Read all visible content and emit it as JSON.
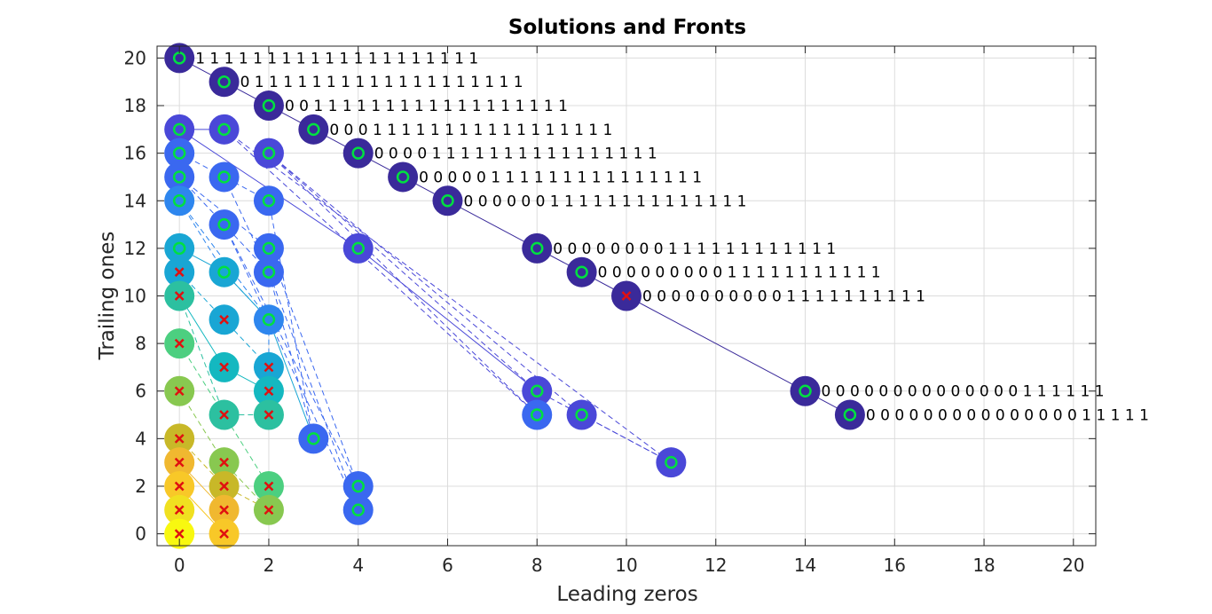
{
  "chart_data": {
    "type": "scatter",
    "title": "Solutions and Fronts",
    "xlabel": "Leading zeros",
    "ylabel": "Trailing ones",
    "xlim": [
      -0.5,
      20.5
    ],
    "ylim": [
      -0.5,
      20.5
    ],
    "xticks": [
      "0",
      "2",
      "4",
      "6",
      "8",
      "10",
      "12",
      "14",
      "16",
      "18",
      "20"
    ],
    "yticks": [
      "0",
      "2",
      "4",
      "6",
      "8",
      "10",
      "12",
      "14",
      "16",
      "18",
      "20"
    ],
    "grid": true,
    "front_colors": [
      "#3a2a9a",
      "#4a48d8",
      "#3a68f0",
      "#2e86ee",
      "#19a6d4",
      "#14b8c0",
      "#2cc0a0",
      "#4ccf80",
      "#88c850",
      "#c8b828",
      "#f0b830",
      "#f8c828",
      "#f0e020",
      "#f8f810"
    ],
    "marker_colors": {
      "selected": "#00e040",
      "rejected": "#e01010"
    },
    "points": [
      {
        "x": 0,
        "y": 20,
        "front": 0,
        "marker": "o",
        "bits": "1 1 1 1 1 1 1 1 1 1 1 1 1 1 1 1 1 1 1 1"
      },
      {
        "x": 1,
        "y": 19,
        "front": 0,
        "marker": "o",
        "bits": "0 1 1 1 1 1 1 1 1 1 1 1 1 1 1 1 1 1 1 1"
      },
      {
        "x": 2,
        "y": 18,
        "front": 0,
        "marker": "o",
        "bits": "0 0 1 1 1 1 1 1 1 1 1 1 1 1 1 1 1 1 1 1"
      },
      {
        "x": 3,
        "y": 17,
        "front": 0,
        "marker": "o",
        "bits": "0 0 0 1 1 1 1 1 1 1 1 1 1 1 1 1 1 1 1 1"
      },
      {
        "x": 4,
        "y": 16,
        "front": 0,
        "marker": "o",
        "bits": "0 0 0 0 1 1 1 1 1 1 1 1 1 1 1 1 1 1 1 1"
      },
      {
        "x": 5,
        "y": 15,
        "front": 0,
        "marker": "o",
        "bits": "0 0 0 0 0 1 1 1 1 1 1 1 1 1 1 1 1 1 1 1"
      },
      {
        "x": 6,
        "y": 14,
        "front": 0,
        "marker": "o",
        "bits": "0 0 0 0 0 0 1 1 1 1 1 1 1 1 1 1 1 1 1 1"
      },
      {
        "x": 8,
        "y": 12,
        "front": 0,
        "marker": "o",
        "bits": "0 0 0 0 0 0 0 0 1 1 1 1 1 1 1 1 1 1 1 1"
      },
      {
        "x": 9,
        "y": 11,
        "front": 0,
        "marker": "o",
        "bits": "0 0 0 0 0 0 0 0 0 1 1 1 1 1 1 1 1 1 1 1"
      },
      {
        "x": 10,
        "y": 10,
        "front": 0,
        "marker": "x",
        "bits": "0 0 0 0 0 0 0 0 0 0 1 1 1 1 1 1 1 1 1 1"
      },
      {
        "x": 14,
        "y": 6,
        "front": 0,
        "marker": "o",
        "bits": "0 0 0 0 0 0 0 0 0 0 0 0 0 0 1 1 1 1 1 1"
      },
      {
        "x": 15,
        "y": 5,
        "front": 0,
        "marker": "o",
        "bits": "0 0 0 0 0 0 0 0 0 0 0 0 0 0 0 1 1 1 1 1"
      },
      {
        "x": 0,
        "y": 17,
        "front": 1,
        "marker": "o"
      },
      {
        "x": 1,
        "y": 17,
        "front": 1,
        "marker": "o"
      },
      {
        "x": 2,
        "y": 16,
        "front": 1,
        "marker": "o"
      },
      {
        "x": 4,
        "y": 12,
        "front": 1,
        "marker": "o"
      },
      {
        "x": 8,
        "y": 6,
        "front": 1,
        "marker": "o"
      },
      {
        "x": 9,
        "y": 5,
        "front": 1,
        "marker": "o"
      },
      {
        "x": 11,
        "y": 3,
        "front": 1,
        "marker": "o"
      },
      {
        "x": 0,
        "y": 16,
        "front": 2,
        "marker": "o"
      },
      {
        "x": 1,
        "y": 15,
        "front": 2,
        "marker": "o"
      },
      {
        "x": 2,
        "y": 14,
        "front": 2,
        "marker": "o"
      },
      {
        "x": 8,
        "y": 5,
        "front": 2,
        "marker": "o"
      },
      {
        "x": 0,
        "y": 15,
        "front": 2,
        "marker": "o"
      },
      {
        "x": 1,
        "y": 13,
        "front": 2,
        "marker": "o"
      },
      {
        "x": 2,
        "y": 12,
        "front": 2,
        "marker": "o"
      },
      {
        "x": 2,
        "y": 11,
        "front": 2,
        "marker": "o"
      },
      {
        "x": 3,
        "y": 4,
        "front": 2,
        "marker": "o"
      },
      {
        "x": 4,
        "y": 2,
        "front": 2,
        "marker": "o"
      },
      {
        "x": 4,
        "y": 1,
        "front": 2,
        "marker": "o"
      },
      {
        "x": 0,
        "y": 14,
        "front": 3,
        "marker": "o"
      },
      {
        "x": 2,
        "y": 9,
        "front": 3,
        "marker": "o"
      },
      {
        "x": 0,
        "y": 12,
        "front": 4,
        "marker": "o"
      },
      {
        "x": 1,
        "y": 11,
        "front": 4,
        "marker": "o"
      },
      {
        "x": 0,
        "y": 11,
        "front": 4,
        "marker": "x"
      },
      {
        "x": 1,
        "y": 9,
        "front": 4,
        "marker": "x"
      },
      {
        "x": 2,
        "y": 7,
        "front": 4,
        "marker": "x"
      },
      {
        "x": 1,
        "y": 7,
        "front": 5,
        "marker": "x"
      },
      {
        "x": 2,
        "y": 6,
        "front": 5,
        "marker": "x"
      },
      {
        "x": 0,
        "y": 10,
        "front": 6,
        "marker": "x"
      },
      {
        "x": 1,
        "y": 5,
        "front": 6,
        "marker": "x"
      },
      {
        "x": 2,
        "y": 5,
        "front": 6,
        "marker": "x"
      },
      {
        "x": 0,
        "y": 8,
        "front": 7,
        "marker": "x"
      },
      {
        "x": 2,
        "y": 2,
        "front": 7,
        "marker": "x"
      },
      {
        "x": 0,
        "y": 6,
        "front": 8,
        "marker": "x"
      },
      {
        "x": 1,
        "y": 3,
        "front": 8,
        "marker": "x"
      },
      {
        "x": 2,
        "y": 1,
        "front": 8,
        "marker": "x"
      },
      {
        "x": 0,
        "y": 4,
        "front": 9,
        "marker": "x"
      },
      {
        "x": 1,
        "y": 2,
        "front": 9,
        "marker": "x"
      },
      {
        "x": 0,
        "y": 3,
        "front": 10,
        "marker": "x"
      },
      {
        "x": 1,
        "y": 1,
        "front": 10,
        "marker": "x"
      },
      {
        "x": 0,
        "y": 2,
        "front": 11,
        "marker": "x"
      },
      {
        "x": 1,
        "y": 0,
        "front": 11,
        "marker": "x"
      },
      {
        "x": 0,
        "y": 1,
        "front": 12,
        "marker": "x"
      },
      {
        "x": 0,
        "y": 0,
        "front": 13,
        "marker": "x"
      }
    ],
    "front_lines": [
      {
        "front": 0,
        "style": "solid",
        "points": [
          [
            0,
            20
          ],
          [
            1,
            19
          ],
          [
            2,
            18
          ],
          [
            3,
            17
          ],
          [
            4,
            16
          ],
          [
            5,
            15
          ],
          [
            6,
            14
          ],
          [
            8,
            12
          ],
          [
            9,
            11
          ],
          [
            10,
            10
          ],
          [
            14,
            6
          ],
          [
            15,
            5
          ]
        ]
      },
      {
        "front": 1,
        "style": "solid",
        "points": [
          [
            0,
            17
          ],
          [
            1,
            17
          ]
        ]
      },
      {
        "front": 1,
        "style": "solid",
        "points": [
          [
            0,
            17
          ],
          [
            4,
            12
          ],
          [
            8,
            6
          ]
        ]
      },
      {
        "front": 1,
        "style": "dashed",
        "points": [
          [
            1,
            17
          ],
          [
            8,
            5
          ]
        ]
      },
      {
        "front": 1,
        "style": "dashed",
        "points": [
          [
            2,
            16
          ],
          [
            9,
            5
          ],
          [
            11,
            3
          ]
        ]
      },
      {
        "front": 1,
        "style": "dashed",
        "points": [
          [
            2,
            16
          ],
          [
            8,
            6
          ],
          [
            11,
            3
          ]
        ]
      },
      {
        "front": 1,
        "style": "dashed",
        "points": [
          [
            2,
            16
          ],
          [
            8,
            5
          ]
        ]
      },
      {
        "front": 1,
        "style": "dashed",
        "points": [
          [
            1,
            17
          ],
          [
            11,
            3
          ]
        ]
      },
      {
        "front": 2,
        "style": "dashed",
        "points": [
          [
            0,
            16
          ],
          [
            2,
            14
          ],
          [
            3,
            4
          ]
        ]
      },
      {
        "front": 2,
        "style": "dashed",
        "points": [
          [
            0,
            15
          ],
          [
            2,
            12
          ],
          [
            4,
            2
          ]
        ]
      },
      {
        "front": 2,
        "style": "dashed",
        "points": [
          [
            0,
            15
          ],
          [
            2,
            11
          ],
          [
            4,
            1
          ]
        ]
      },
      {
        "front": 2,
        "style": "dashed",
        "points": [
          [
            1,
            15
          ],
          [
            2,
            11
          ],
          [
            3,
            4
          ]
        ]
      },
      {
        "front": 2,
        "style": "dashed",
        "points": [
          [
            1,
            13
          ],
          [
            4,
            2
          ]
        ]
      },
      {
        "front": 2,
        "style": "dashed",
        "points": [
          [
            1,
            13
          ],
          [
            4,
            1
          ]
        ]
      },
      {
        "front": 3,
        "style": "dashed",
        "points": [
          [
            0,
            14
          ],
          [
            2,
            9
          ],
          [
            2,
            7
          ]
        ]
      },
      {
        "front": 3,
        "style": "dashed",
        "points": [
          [
            0,
            14
          ],
          [
            1,
            11
          ],
          [
            2,
            9
          ]
        ]
      },
      {
        "front": 4,
        "style": "solid",
        "points": [
          [
            0,
            12
          ],
          [
            1,
            11
          ],
          [
            2,
            9
          ],
          [
            3,
            4
          ]
        ]
      },
      {
        "front": 4,
        "style": "dashed",
        "points": [
          [
            0,
            11
          ],
          [
            1,
            9
          ],
          [
            2,
            7
          ],
          [
            2,
            6
          ]
        ]
      },
      {
        "front": 5,
        "style": "solid",
        "points": [
          [
            0,
            10
          ],
          [
            1,
            7
          ],
          [
            2,
            6
          ]
        ]
      },
      {
        "front": 6,
        "style": "dashed",
        "points": [
          [
            0,
            10
          ],
          [
            1,
            5
          ],
          [
            2,
            5
          ]
        ]
      },
      {
        "front": 7,
        "style": "dashed",
        "points": [
          [
            0,
            8
          ],
          [
            1,
            5
          ],
          [
            2,
            2
          ]
        ]
      },
      {
        "front": 8,
        "style": "dashed",
        "points": [
          [
            0,
            6
          ],
          [
            1,
            3
          ],
          [
            2,
            1
          ]
        ]
      },
      {
        "front": 9,
        "style": "dashed",
        "points": [
          [
            0,
            4
          ],
          [
            1,
            2
          ],
          [
            2,
            1
          ]
        ]
      },
      {
        "front": 10,
        "style": "solid",
        "points": [
          [
            0,
            3
          ],
          [
            1,
            1
          ]
        ]
      },
      {
        "front": 11,
        "style": "solid",
        "points": [
          [
            0,
            2
          ],
          [
            1,
            0
          ]
        ]
      }
    ]
  }
}
